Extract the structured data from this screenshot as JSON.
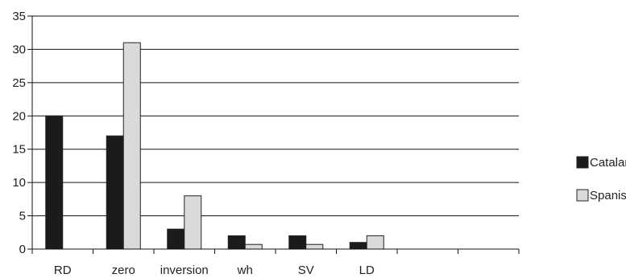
{
  "chart_data": {
    "type": "bar",
    "title": "",
    "xlabel": "",
    "ylabel": "",
    "categories": [
      "RD",
      "zero",
      "inversion",
      "wh",
      "SV",
      "LD",
      "",
      ""
    ],
    "series": [
      {
        "name": "Catalan",
        "values": [
          20,
          17,
          3,
          2,
          2,
          1,
          null,
          null
        ]
      },
      {
        "name": "Spanish",
        "values": [
          0,
          31,
          8,
          0.7,
          0.7,
          2,
          null,
          null
        ]
      }
    ],
    "ylim": [
      0,
      35
    ],
    "yticks": [
      0,
      5,
      10,
      15,
      20,
      25,
      30,
      35
    ],
    "grid": true,
    "legend_position": "right",
    "colors": {
      "Catalan": "#1b1b1b",
      "Spanish": "#dadada",
      "gridline": "#111111"
    }
  }
}
